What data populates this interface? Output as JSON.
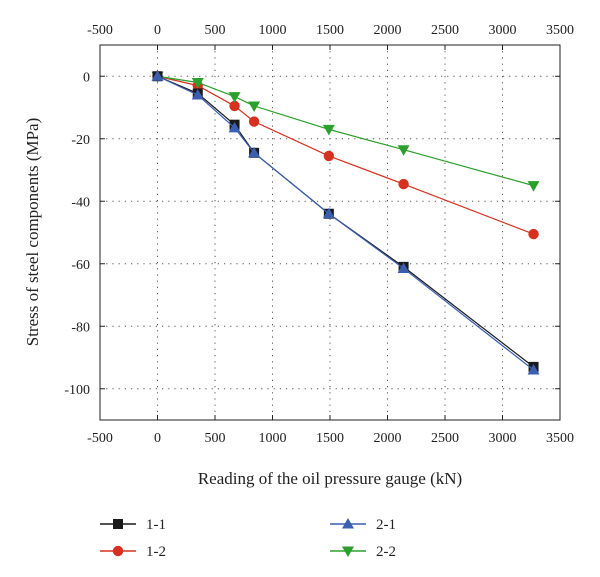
{
  "chart_data": {
    "type": "line",
    "title": "",
    "xlabel": "Reading of the oil pressure gauge (kN)",
    "ylabel": "Stress of steel components (MPa)",
    "xlim": [
      -500,
      3500
    ],
    "ylim": [
      -110,
      10
    ],
    "xticks": [
      -500,
      0,
      500,
      1000,
      1500,
      2000,
      2500,
      3000,
      3500
    ],
    "yticks": [
      -100,
      -80,
      -60,
      -40,
      -20,
      0
    ],
    "x_tick_labels": [
      "-500",
      "0",
      "500",
      "1000",
      "1500",
      "2000",
      "2500",
      "3000",
      "3500"
    ],
    "y_tick_labels": [
      "-100",
      "-80",
      "-60",
      "-40",
      "-20",
      "0"
    ],
    "grid": "dotted",
    "legend_position": "bottom",
    "series": [
      {
        "name": "1-1",
        "marker": "square",
        "color": "#1a1a1a",
        "x": [
          0,
          350,
          670,
          840,
          1490,
          2140,
          3270
        ],
        "y": [
          0,
          -5.5,
          -15.5,
          -24.5,
          -44,
          -61,
          -93
        ]
      },
      {
        "name": "1-2",
        "marker": "circle",
        "color": "#d7301f",
        "x": [
          0,
          350,
          670,
          840,
          1490,
          2140,
          3270
        ],
        "y": [
          0,
          -3,
          -9.5,
          -14.5,
          -25.5,
          -34.5,
          -50.5
        ]
      },
      {
        "name": "2-1",
        "marker": "triangle-up",
        "color": "#3a5fb0",
        "x": [
          0,
          350,
          670,
          840,
          1490,
          2140,
          3270
        ],
        "y": [
          0,
          -6,
          -16.5,
          -24.5,
          -44,
          -61.5,
          -94
        ]
      },
      {
        "name": "2-2",
        "marker": "triangle-down",
        "color": "#2ca02c",
        "x": [
          0,
          350,
          670,
          840,
          1490,
          2140,
          3270
        ],
        "y": [
          0,
          -2,
          -6.5,
          -9.5,
          -17,
          -23.5,
          -35
        ]
      }
    ]
  }
}
